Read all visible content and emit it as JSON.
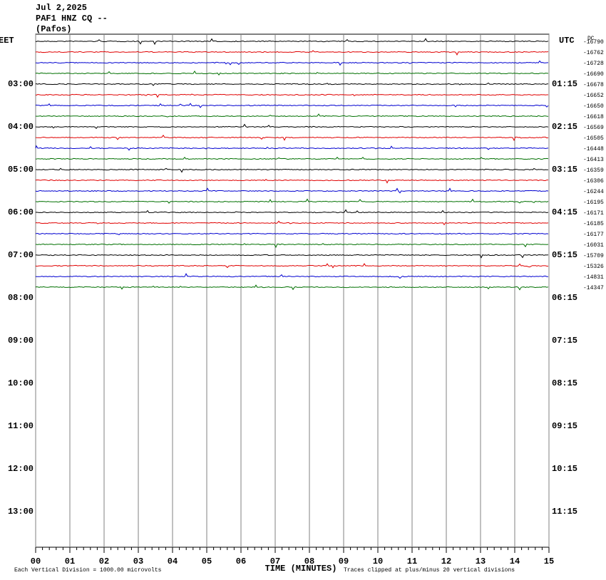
{
  "chart_data": {
    "type": "helicorder",
    "title": [
      "Jul 2,2025",
      "PAF1 HNZ CQ --",
      "(Pafos)"
    ],
    "left_zone": "EET",
    "right_zone": "UTC",
    "dc_header": "DC",
    "left_labels": [
      "03:00",
      "04:00",
      "05:00",
      "06:00",
      "07:00",
      "08:00",
      "09:00",
      "10:00",
      "11:00",
      "12:00",
      "13:00"
    ],
    "right_labels": [
      "01:15",
      "02:15",
      "03:15",
      "04:15",
      "05:15",
      "06:15",
      "07:15",
      "08:15",
      "09:15",
      "10:15",
      "11:15"
    ],
    "trace_colors": [
      "#000000",
      "#e00000",
      "#0000d0",
      "#007000"
    ],
    "dc_values": [
      -16790,
      -16762,
      -16728,
      -16690,
      -16678,
      -16652,
      -16650,
      -16618,
      -16569,
      -16505,
      -16448,
      -16413,
      -16359,
      -16306,
      -16244,
      -16195,
      -16171,
      -16185,
      -16177,
      -16031,
      -15709,
      -15326,
      -14831,
      -14347
    ],
    "xlim": [
      0,
      15
    ],
    "xticks": [
      {
        "value": 0,
        "label": "00"
      },
      {
        "value": 1,
        "label": "01"
      },
      {
        "value": 2,
        "label": "02"
      },
      {
        "value": 3,
        "label": "03"
      },
      {
        "value": 4,
        "label": "04"
      },
      {
        "value": 5,
        "label": "05"
      },
      {
        "value": 6,
        "label": "06"
      },
      {
        "value": 7,
        "label": "07"
      },
      {
        "value": 8,
        "label": "08"
      },
      {
        "value": 9,
        "label": "09"
      },
      {
        "value": 10,
        "label": "10"
      },
      {
        "value": 11,
        "label": "11"
      },
      {
        "value": 12,
        "label": "12"
      },
      {
        "value": 13,
        "label": "13"
      },
      {
        "value": 14,
        "label": "14"
      },
      {
        "value": 15,
        "label": "15"
      }
    ],
    "xlabel": "TIME (MINUTES)",
    "footer_left": "Each Vertical Division = 1000.00 microvolts",
    "footer_right": "Traces clipped at plus/minus 20 vertical divisions"
  }
}
